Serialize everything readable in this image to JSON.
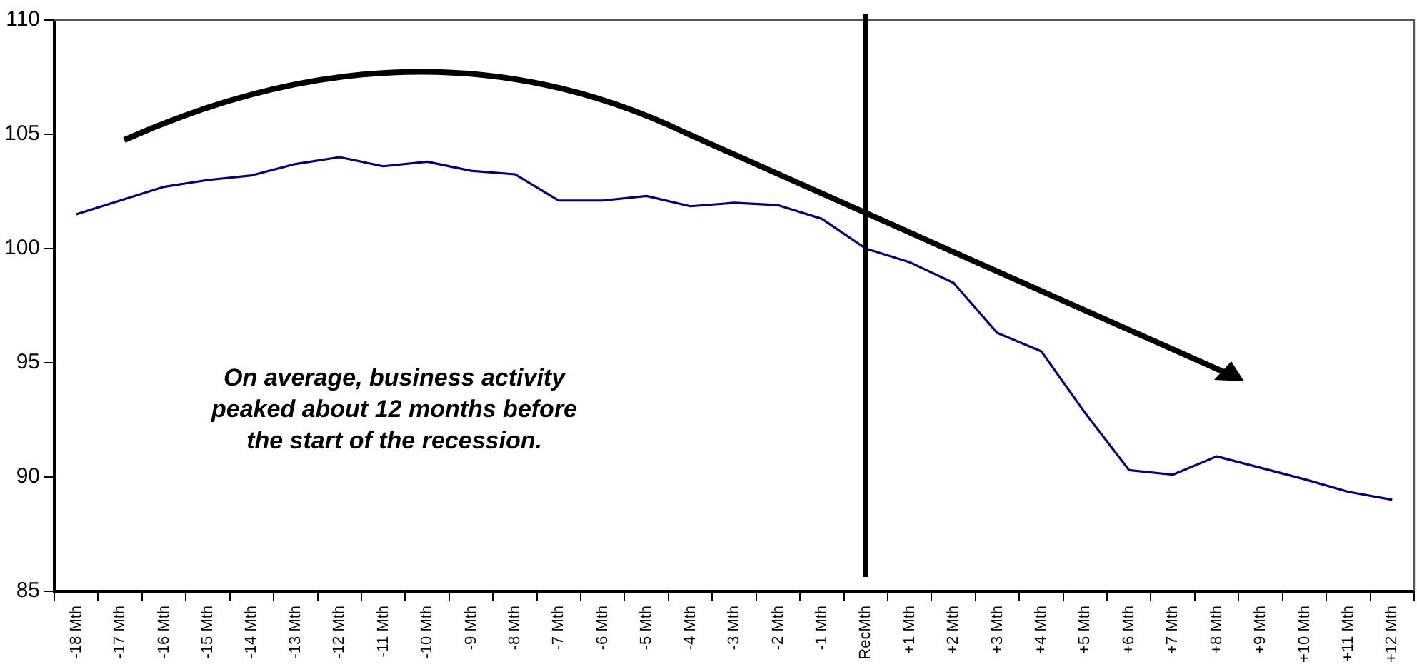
{
  "chart_data": {
    "type": "line",
    "categories": [
      "-18 Mth",
      "-17 Mth",
      "-16 Mth",
      "-15 Mth",
      "-14 Mth",
      "-13 Mth",
      "-12 Mth",
      "-11 Mth",
      "-10 Mth",
      "-9 Mth",
      "-8 Mth",
      "-7 Mth",
      "-6 Mth",
      "-5 Mth",
      "-4 Mth",
      "-3 Mth",
      "-2 Mth",
      "-1 Mth",
      "RecMth",
      "+1 Mth",
      "+2 Mth",
      "+3 Mth",
      "+4 Mth",
      "+5 Mth",
      "+6 Mth",
      "+7 Mth",
      "+8 Mth",
      "+9 Mth",
      "+10 Mth",
      "+11 Mth",
      "+12 Mth"
    ],
    "series": [
      {
        "color": "#000080",
        "values": [
          101.5,
          102.1,
          102.7,
          103.0,
          103.2,
          103.7,
          104.0,
          103.6,
          103.8,
          103.4,
          103.25,
          102.1,
          102.1,
          102.3,
          101.85,
          102.0,
          101.9,
          101.3,
          100.0,
          99.4,
          98.5,
          96.3,
          95.5,
          92.8,
          90.3,
          90.1,
          90.9,
          90.4,
          89.9,
          89.35,
          89.0
        ]
      }
    ],
    "ylim": [
      85,
      110
    ],
    "yticks": [
      85,
      90,
      95,
      100,
      105,
      110
    ],
    "grid": false,
    "legend": false,
    "marker": "none",
    "line_style": "solid",
    "ref_lines": [
      {
        "axis": "x",
        "value": "RecMth",
        "color": "#000000"
      }
    ],
    "annotations": [
      "On average, business activity peaked about 12 months before the start of the recession."
    ]
  }
}
